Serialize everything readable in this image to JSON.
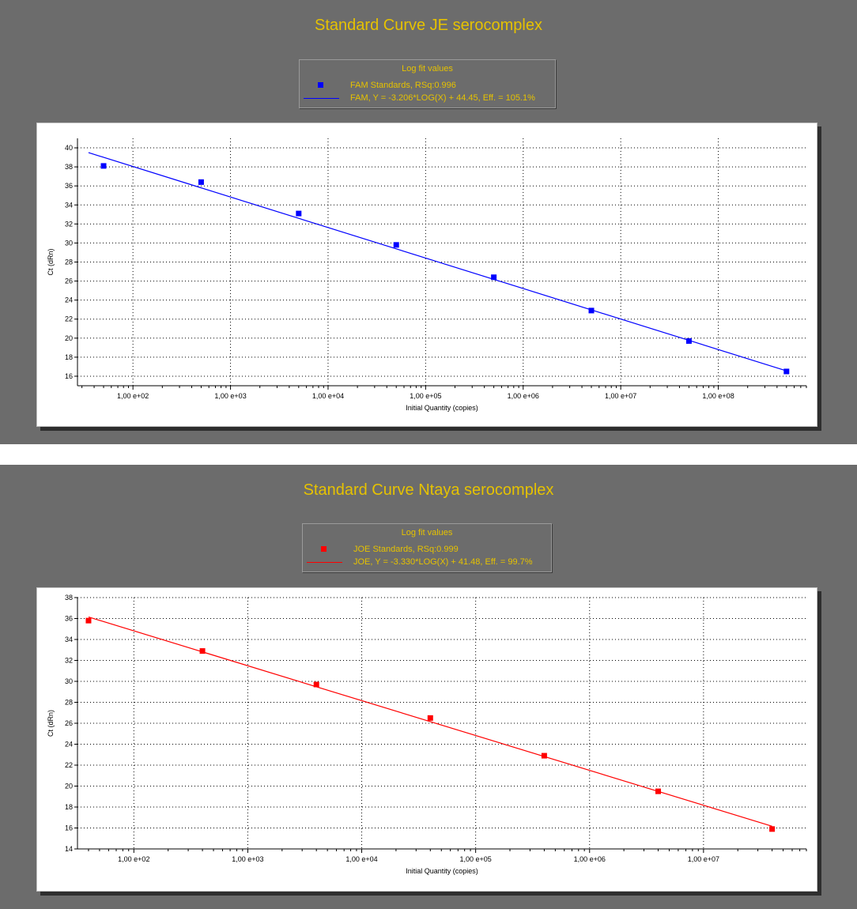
{
  "chart_data": [
    {
      "type": "scatter",
      "title": "Standard Curve JE serocomplex",
      "legend_title": "Log fit values",
      "legend_items": [
        {
          "label": "FAM Standards, RSq:0.996",
          "symbol": "square"
        },
        {
          "label": "FAM, Y = -3.206*LOG(X) + 44.45, Eff. = 105.1%",
          "symbol": "line"
        }
      ],
      "color": "#0000ff",
      "xlabel": "Initial Quantity (copies)",
      "ylabel": "Ct (dRn)",
      "x_scale": "log",
      "xlim": [
        27,
        800000000
      ],
      "ylim": [
        15,
        41
      ],
      "x_ticks": [
        100,
        1000,
        10000,
        100000,
        1000000,
        10000000,
        100000000
      ],
      "x_tick_labels": [
        "1,00 e+02",
        "1,00 e+03",
        "1,00 e+04",
        "1,00 e+05",
        "1,00 e+06",
        "1,00 e+07",
        "1,00 e+08"
      ],
      "y_ticks": [
        16,
        18,
        20,
        22,
        24,
        26,
        28,
        30,
        32,
        34,
        36,
        38,
        40
      ],
      "grid": true,
      "series": [
        {
          "name": "FAM Standards",
          "x": [
            50,
            500,
            5000,
            50000,
            500000,
            5000000,
            50000000,
            500000000
          ],
          "y": [
            38.1,
            36.4,
            33.1,
            29.8,
            26.4,
            22.9,
            19.7,
            16.5
          ]
        }
      ],
      "fit": {
        "slope": -3.206,
        "intercept": 44.45,
        "x_range": [
          35,
          500000000
        ]
      }
    },
    {
      "type": "scatter",
      "title": "Standard Curve Ntaya serocomplex",
      "legend_title": "Log fit values",
      "legend_items": [
        {
          "label": "JOE Standards, RSq:0.999",
          "symbol": "square"
        },
        {
          "label": "JOE, Y = -3.330*LOG(X) + 41.48, Eff. = 99.7%",
          "symbol": "line"
        }
      ],
      "color": "#ff0000",
      "xlabel": "Initial Quantity (copies)",
      "ylabel": "Ct (dRn)",
      "x_scale": "log",
      "xlim": [
        32,
        80000000
      ],
      "ylim": [
        14,
        38
      ],
      "x_ticks": [
        100,
        1000,
        10000,
        100000,
        1000000,
        10000000
      ],
      "x_tick_labels": [
        "1,00 e+02",
        "1,00 e+03",
        "1,00 e+04",
        "1,00 e+05",
        "1,00 e+06",
        "1,00 e+07"
      ],
      "y_ticks": [
        14,
        16,
        18,
        20,
        22,
        24,
        26,
        28,
        30,
        32,
        34,
        36,
        38
      ],
      "grid": true,
      "series": [
        {
          "name": "JOE Standards",
          "x": [
            40,
            400,
            4000,
            40000,
            400000,
            4000000,
            40000000
          ],
          "y": [
            35.8,
            32.9,
            29.7,
            26.5,
            22.9,
            19.5,
            15.9
          ]
        }
      ],
      "fit": {
        "slope": -3.33,
        "intercept": 41.48,
        "x_range": [
          40,
          40000000
        ]
      }
    }
  ]
}
